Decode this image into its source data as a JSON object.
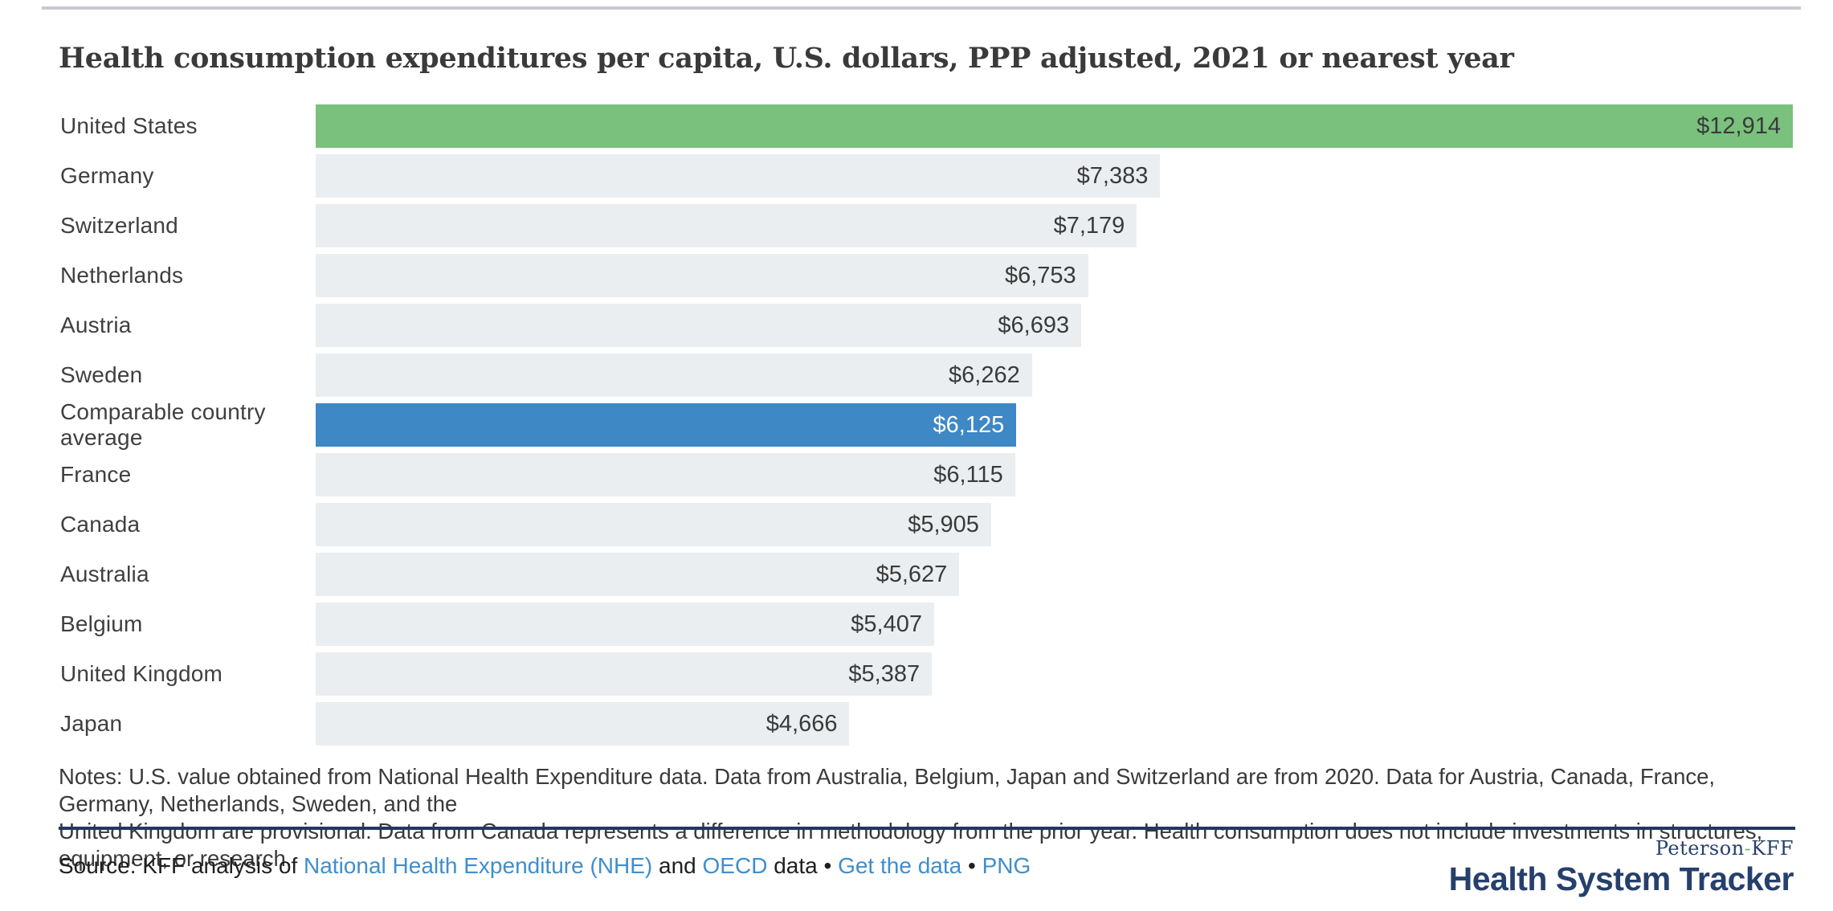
{
  "chart_data": {
    "type": "bar",
    "orientation": "horizontal",
    "title": "Health consumption expenditures per capita, U.S. dollars, PPP adjusted, 2021 or nearest year",
    "categories": [
      "United States",
      "Germany",
      "Switzerland",
      "Netherlands",
      "Austria",
      "Sweden",
      "Comparable country average",
      "France",
      "Canada",
      "Australia",
      "Belgium",
      "United Kingdom",
      "Japan"
    ],
    "values": [
      12914,
      7383,
      7179,
      6753,
      6693,
      6262,
      6125,
      6115,
      5905,
      5627,
      5407,
      5387,
      4666
    ],
    "value_labels": [
      "$12,914",
      "$7,383",
      "$7,179",
      "$6,753",
      "$6,693",
      "$6,262",
      "$6,125",
      "$6,115",
      "$5,905",
      "$5,627",
      "$5,407",
      "$5,387",
      "$4,666"
    ],
    "bar_styles": [
      "us",
      "default",
      "default",
      "default",
      "default",
      "default",
      "average",
      "default",
      "default",
      "default",
      "default",
      "default",
      "default"
    ],
    "xlim": [
      0,
      12914
    ],
    "grid": false,
    "legend": "none",
    "value_label_position": "inside-end"
  },
  "notes": {
    "lines": [
      "Notes: U.S. value obtained from National Health Expenditure data. Data from Australia, Belgium, Japan and Switzerland are from 2020. Data for Austria, Canada, France, Germany, Netherlands, Sweden, and the",
      "United Kingdom are provisional. Data from Canada represents a difference in methodology from the prior year. Health consumption does not include investments in structures, equipment, or research."
    ]
  },
  "source": {
    "segments": [
      {
        "name": "source-prefix-text",
        "text": "Source: KFF analysis of ",
        "link": false
      },
      {
        "name": "nhe-link",
        "text": "National Health Expenditure (NHE)",
        "link": true
      },
      {
        "name": "and-text",
        "text": " and ",
        "link": false
      },
      {
        "name": "oecd-link",
        "text": "OECD",
        "link": true
      },
      {
        "name": "data-text",
        "text": " data ",
        "link": false
      },
      {
        "name": "bullet-separator",
        "text": "• ",
        "link": false
      },
      {
        "name": "get-the-data-link",
        "text": "Get the data",
        "link": true
      },
      {
        "name": "bullet-separator",
        "text": " • ",
        "link": false
      },
      {
        "name": "png-link",
        "text": "PNG",
        "link": true
      }
    ]
  },
  "logo": {
    "peterson": "Peterson",
    "hyphen": "-",
    "kff": "KFF",
    "tracker": "Health System Tracker"
  },
  "colors": {
    "us_bar": "#7ac17e",
    "average_bar": "#3e88c5",
    "default_bar": "#ebeef1",
    "bar_value_text": "#3a3a3a",
    "bar_value_text_on_blue": "#ffffff",
    "link": "#3f8ecd",
    "navy": "#26406c",
    "logo_hyphen": "#77b97c",
    "rule_navy": "#21395f",
    "rule_gray": "#c7c9d0",
    "text": "#3a3a3a"
  }
}
